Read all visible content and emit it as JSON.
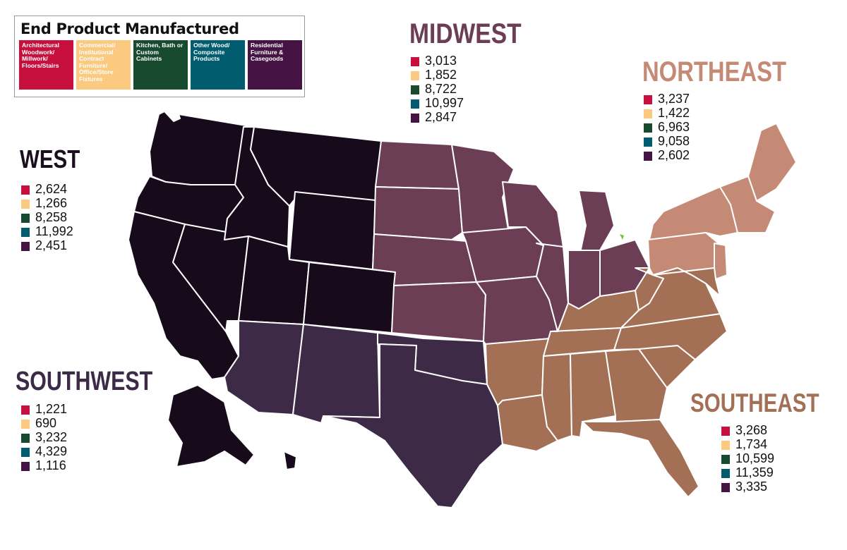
{
  "legend": {
    "title": "End Product Manufactured",
    "categories": [
      {
        "label": "Architectural Woodwork/ Millwork/ Floors/Stairs",
        "color": "#c8103e"
      },
      {
        "label": "Commercial/ Institutional Contract Furniture/ Office/Store Fixtures",
        "color": "#fbc97f"
      },
      {
        "label": "Kitchen, Bath or Custom Cabinets",
        "color": "#184a30"
      },
      {
        "label": "Other Wood/ Composite Products",
        "color": "#005c6e"
      },
      {
        "label": "Residential Furniture & Casegoods",
        "color": "#461444"
      }
    ]
  },
  "regions": {
    "west": {
      "name": "WEST",
      "color": "#170b1b",
      "values": [
        "2,624",
        "1,266",
        "8,258",
        "11,992",
        "2,451"
      ]
    },
    "midwest": {
      "name": "MIDWEST",
      "color": "#6c3e56",
      "values": [
        "3,013",
        "1,852",
        "8,722",
        "10,997",
        "2,847"
      ]
    },
    "northeast": {
      "name": "NORTHEAST",
      "color": "#c48a75",
      "values": [
        "3,237",
        "1,422",
        "6,963",
        "9,058",
        "2,602"
      ]
    },
    "southwest": {
      "name": "SOUTHWEST",
      "color": "#3d2a47",
      "values": [
        "1,221",
        "690",
        "3,232",
        "4,329",
        "1,116"
      ]
    },
    "southeast": {
      "name": "SOUTHEAST",
      "color": "#a36f55",
      "values": [
        "3,268",
        "1,734",
        "10,599",
        "11,359",
        "3,335"
      ]
    }
  },
  "title_colors": {
    "west": "#1b0f1f",
    "midwest": "#6c3e56",
    "northeast": "#c48a75",
    "southwest": "#3d2a47",
    "southeast": "#a36f55"
  }
}
